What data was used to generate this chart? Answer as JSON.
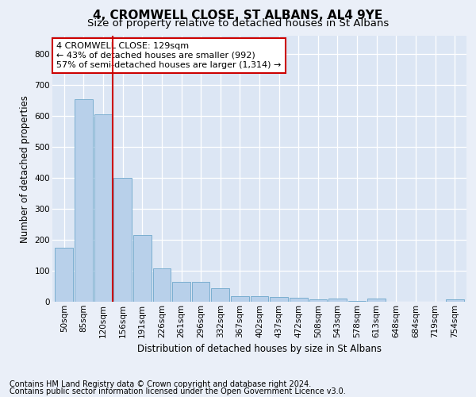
{
  "title": "4, CROMWELL CLOSE, ST ALBANS, AL4 9YE",
  "subtitle": "Size of property relative to detached houses in St Albans",
  "xlabel": "Distribution of detached houses by size in St Albans",
  "ylabel": "Number of detached properties",
  "footnote1": "Contains HM Land Registry data © Crown copyright and database right 2024.",
  "footnote2": "Contains public sector information licensed under the Open Government Licence v3.0.",
  "bar_labels": [
    "50sqm",
    "85sqm",
    "120sqm",
    "156sqm",
    "191sqm",
    "226sqm",
    "261sqm",
    "296sqm",
    "332sqm",
    "367sqm",
    "402sqm",
    "437sqm",
    "472sqm",
    "508sqm",
    "543sqm",
    "578sqm",
    "613sqm",
    "648sqm",
    "684sqm",
    "719sqm",
    "754sqm"
  ],
  "bar_values": [
    175,
    655,
    605,
    400,
    215,
    107,
    63,
    63,
    43,
    17,
    17,
    15,
    13,
    7,
    9,
    2,
    9,
    1,
    0,
    0,
    7
  ],
  "bar_color": "#b8d0ea",
  "bar_edge_color": "#7aaed0",
  "ylim": [
    0,
    860
  ],
  "yticks": [
    0,
    100,
    200,
    300,
    400,
    500,
    600,
    700,
    800
  ],
  "vline_color": "#cc0000",
  "annotation_text": "4 CROMWELL CLOSE: 129sqm\n← 43% of detached houses are smaller (992)\n57% of semi-detached houses are larger (1,314) →",
  "annotation_box_color": "#ffffff",
  "annotation_box_edge": "#cc0000",
  "background_color": "#eaeff8",
  "plot_bg_color": "#dce6f4",
  "grid_color": "#ffffff",
  "title_fontsize": 11,
  "subtitle_fontsize": 9.5,
  "axis_label_fontsize": 8.5,
  "tick_fontsize": 7.5,
  "annotation_fontsize": 8,
  "footnote_fontsize": 7
}
